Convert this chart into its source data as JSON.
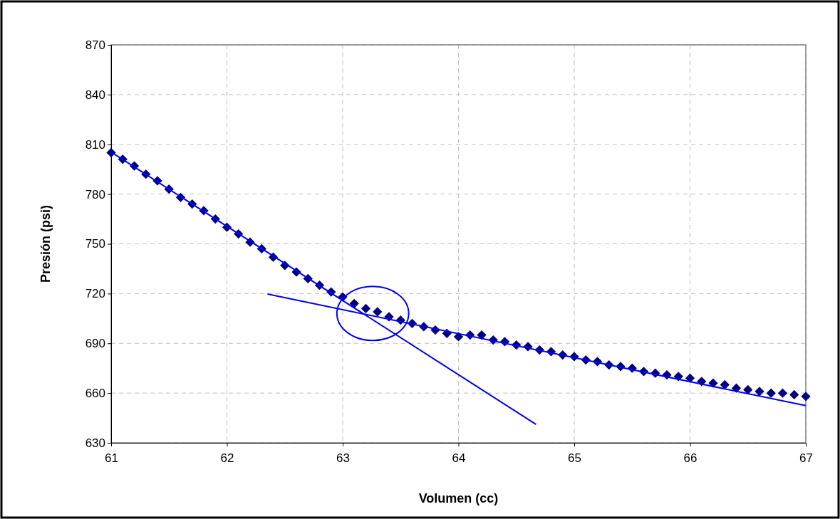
{
  "chart_data": {
    "type": "scatter",
    "xlabel": "Volumen (cc)",
    "ylabel": "Presión (psi)",
    "xlim": [
      61,
      67
    ],
    "xticks": [
      61,
      62,
      63,
      64,
      65,
      66,
      67
    ],
    "ylim": [
      630,
      870
    ],
    "yticks": [
      630,
      660,
      690,
      720,
      750,
      780,
      810,
      840,
      870
    ],
    "grid": true,
    "series": [
      {
        "marker": "diamond",
        "color": "#000080",
        "x": [
          61.0,
          61.1,
          61.2,
          61.3,
          61.4,
          61.5,
          61.6,
          61.7,
          61.8,
          61.9,
          62.0,
          62.1,
          62.2,
          62.3,
          62.4,
          62.5,
          62.6,
          62.7,
          62.8,
          62.9,
          63.0,
          63.1,
          63.2,
          63.3,
          63.4,
          63.5,
          63.6,
          63.7,
          63.8,
          63.9,
          64.0,
          64.1,
          64.2,
          64.3,
          64.4,
          64.5,
          64.6,
          64.7,
          64.8,
          64.9,
          65.0,
          65.1,
          65.2,
          65.3,
          65.4,
          65.5,
          65.6,
          65.7,
          65.8,
          65.9,
          66.0,
          66.1,
          66.2,
          66.3,
          66.4,
          66.5,
          66.6,
          66.7,
          66.8,
          66.9,
          67.0
        ],
        "values": [
          805,
          801,
          797,
          792,
          788,
          783,
          778,
          774,
          770,
          765,
          760,
          756,
          751,
          747,
          742,
          737,
          733,
          729,
          725,
          721,
          718,
          714,
          711,
          709,
          706,
          704,
          702,
          700,
          698,
          696,
          694,
          695,
          695,
          692,
          691,
          689,
          688,
          686,
          685,
          683,
          682,
          680,
          679,
          677,
          676,
          675,
          673,
          672,
          671,
          670,
          669,
          667,
          666,
          665,
          663,
          662,
          661,
          660,
          660,
          659,
          658
        ]
      },
      {
        "type": "line",
        "color": "#0000ff",
        "x": [
          61,
          64.67
        ],
        "values": [
          805.3,
          641.1
        ]
      },
      {
        "type": "line",
        "color": "#0000ff",
        "x": [
          62.35,
          67
        ],
        "values": [
          719.7,
          652.4
        ]
      }
    ]
  }
}
